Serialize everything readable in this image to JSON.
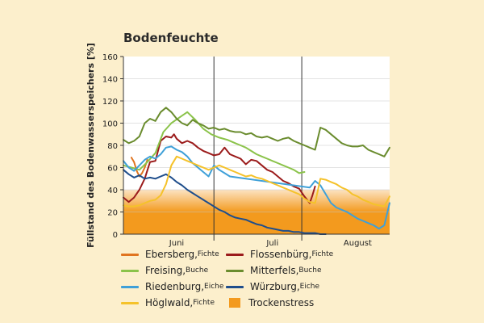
{
  "chart_data": {
    "type": "line",
    "title": "Bodenfeuchte",
    "ylabel": "Füllstand des Bodenwasserspeichers [%]",
    "xlabel": "",
    "ylim": [
      0,
      160
    ],
    "yticks": [
      "0",
      "20",
      "40",
      "60",
      "80",
      "100",
      "120",
      "140",
      "160"
    ],
    "xlim": [
      0,
      100
    ],
    "month_labels": [
      {
        "label": "Juni",
        "x": 20
      },
      {
        "label": "Juli",
        "x": 56
      },
      {
        "label": "August",
        "x": 88
      }
    ],
    "month_dividers": [
      34,
      67
    ],
    "grid": true,
    "trockenstress": {
      "label": "Trockenstress",
      "solid_below": 20,
      "gradient_top": 40,
      "color": "#f39a1e"
    },
    "series": [
      {
        "name": "Ebersberg",
        "species": "Fichte",
        "color": "#e0741f",
        "x": [
          3,
          4,
          5,
          6,
          7,
          8,
          9
        ],
        "values": [
          69,
          65,
          57,
          52,
          55,
          60,
          67
        ]
      },
      {
        "name": "Flossenbürg",
        "species": "Fichte",
        "color": "#9b1b1b",
        "x": [
          0,
          2,
          4,
          6,
          8,
          10,
          12,
          14,
          16,
          18,
          19,
          20,
          22,
          24,
          26,
          28,
          30,
          32,
          34,
          36,
          38,
          40,
          42,
          44,
          46,
          48,
          50,
          52,
          54,
          56,
          58,
          60,
          62,
          64,
          66,
          68,
          70,
          71,
          72
        ],
        "values": [
          33,
          29,
          33,
          40,
          50,
          65,
          66,
          84,
          88,
          87,
          90,
          86,
          82,
          84,
          82,
          78,
          75,
          73,
          71,
          72,
          78,
          72,
          70,
          68,
          63,
          67,
          66,
          62,
          58,
          56,
          52,
          48,
          46,
          43,
          41,
          34,
          28,
          35,
          43
        ]
      },
      {
        "name": "Freising",
        "species": "Buche",
        "color": "#8bc34a",
        "x": [
          0,
          3,
          6,
          9,
          12,
          15,
          18,
          21,
          24,
          27,
          30,
          33,
          36,
          39,
          42,
          44,
          46,
          48,
          50,
          52,
          54,
          56,
          58,
          60,
          62,
          64,
          66,
          68
        ],
        "values": [
          62,
          60,
          58,
          65,
          73,
          92,
          100,
          105,
          110,
          103,
          95,
          90,
          87,
          85,
          82,
          80,
          78,
          75,
          72,
          70,
          68,
          66,
          64,
          62,
          60,
          58,
          55,
          56
        ]
      },
      {
        "name": "Mitterfels",
        "species": "Buche",
        "color": "#6a8c2e",
        "x": [
          0,
          2,
          4,
          6,
          8,
          10,
          12,
          14,
          16,
          18,
          20,
          22,
          24,
          26,
          28,
          30,
          32,
          34,
          36,
          38,
          40,
          42,
          44,
          46,
          48,
          50,
          52,
          54,
          56,
          58,
          60,
          62,
          64,
          66,
          68,
          70,
          72,
          74,
          76,
          78,
          80,
          82,
          84,
          86,
          88,
          90,
          92,
          94,
          96,
          98,
          100
        ],
        "values": [
          85,
          82,
          84,
          88,
          100,
          104,
          102,
          110,
          114,
          110,
          104,
          100,
          98,
          103,
          100,
          98,
          95,
          96,
          94,
          95,
          93,
          92,
          92,
          90,
          91,
          88,
          87,
          88,
          86,
          84,
          86,
          87,
          84,
          82,
          80,
          78,
          76,
          96,
          94,
          90,
          86,
          82,
          80,
          79,
          79,
          80,
          76,
          74,
          72,
          70,
          78
        ]
      },
      {
        "name": "Riedenburg",
        "species": "Eiche",
        "color": "#3fa0d8",
        "x": [
          0,
          2,
          4,
          6,
          8,
          10,
          12,
          14,
          16,
          18,
          20,
          22,
          24,
          26,
          28,
          30,
          32,
          34,
          36,
          38,
          40,
          70,
          72,
          74,
          76,
          78,
          80,
          82,
          84,
          86,
          88,
          90,
          92,
          94,
          96,
          98,
          100
        ],
        "values": [
          66,
          60,
          57,
          62,
          67,
          70,
          68,
          72,
          78,
          79,
          76,
          74,
          70,
          64,
          60,
          56,
          52,
          62,
          58,
          55,
          52,
          42,
          48,
          44,
          36,
          28,
          24,
          22,
          20,
          17,
          14,
          12,
          10,
          8,
          5,
          8,
          28
        ]
      },
      {
        "name": "Würzburg",
        "species": "Eiche",
        "color": "#1f4e8c",
        "x": [
          0,
          2,
          4,
          6,
          8,
          10,
          12,
          14,
          16,
          18,
          20,
          22,
          24,
          26,
          28,
          30,
          32,
          34,
          36,
          38,
          40,
          42,
          44,
          46,
          48,
          50,
          52,
          54,
          56,
          58,
          60,
          62,
          64,
          66,
          68,
          70,
          72,
          74,
          76
        ],
        "values": [
          58,
          54,
          51,
          53,
          50,
          51,
          50,
          52,
          54,
          51,
          47,
          44,
          40,
          37,
          34,
          31,
          28,
          25,
          22,
          20,
          17,
          15,
          14,
          13,
          11,
          9,
          8,
          6,
          5,
          4,
          3,
          3,
          2,
          2,
          1,
          1,
          1,
          0,
          0
        ]
      },
      {
        "name": "Höglwald",
        "species": "Fichte",
        "color": "#f5c22a",
        "x": [
          0,
          2,
          4,
          6,
          8,
          10,
          12,
          14,
          16,
          18,
          20,
          22,
          24,
          26,
          28,
          30,
          32,
          34,
          36,
          38,
          40,
          42,
          44,
          46,
          48,
          50,
          52,
          54,
          56,
          58,
          60,
          62,
          64,
          66,
          68,
          70,
          72,
          74,
          76,
          78,
          80,
          82,
          84,
          86,
          88,
          90,
          92,
          94,
          96,
          98,
          100
        ],
        "values": [
          26,
          25,
          25,
          26,
          28,
          30,
          31,
          35,
          45,
          62,
          70,
          68,
          66,
          64,
          62,
          60,
          58,
          60,
          62,
          60,
          58,
          56,
          54,
          52,
          53,
          51,
          50,
          48,
          46,
          44,
          42,
          40,
          38,
          36,
          32,
          29,
          28,
          50,
          49,
          47,
          45,
          42,
          40,
          36,
          34,
          31,
          29,
          27,
          26,
          25,
          34
        ]
      }
    ],
    "legend": [
      {
        "name": "Ebersberg",
        "species": "Fichte",
        "color": "#e0741f",
        "kind": "line"
      },
      {
        "name": "Flossenbürg",
        "species": "Fichte",
        "color": "#9b1b1b",
        "kind": "line"
      },
      {
        "name": "Freising",
        "species": "Buche",
        "color": "#8bc34a",
        "kind": "line"
      },
      {
        "name": "Mitterfels",
        "species": "Buche",
        "color": "#6a8c2e",
        "kind": "line"
      },
      {
        "name": "Riedenburg",
        "species": "Eiche",
        "color": "#3fa0d8",
        "kind": "line"
      },
      {
        "name": "Würzburg",
        "species": "Eiche",
        "color": "#1f4e8c",
        "kind": "line"
      },
      {
        "name": "Höglwald",
        "species": "Fichte",
        "color": "#f5c22a",
        "kind": "line"
      },
      {
        "name": "Trockenstress",
        "species": "",
        "color": "#f39a1e",
        "kind": "box"
      }
    ]
  }
}
